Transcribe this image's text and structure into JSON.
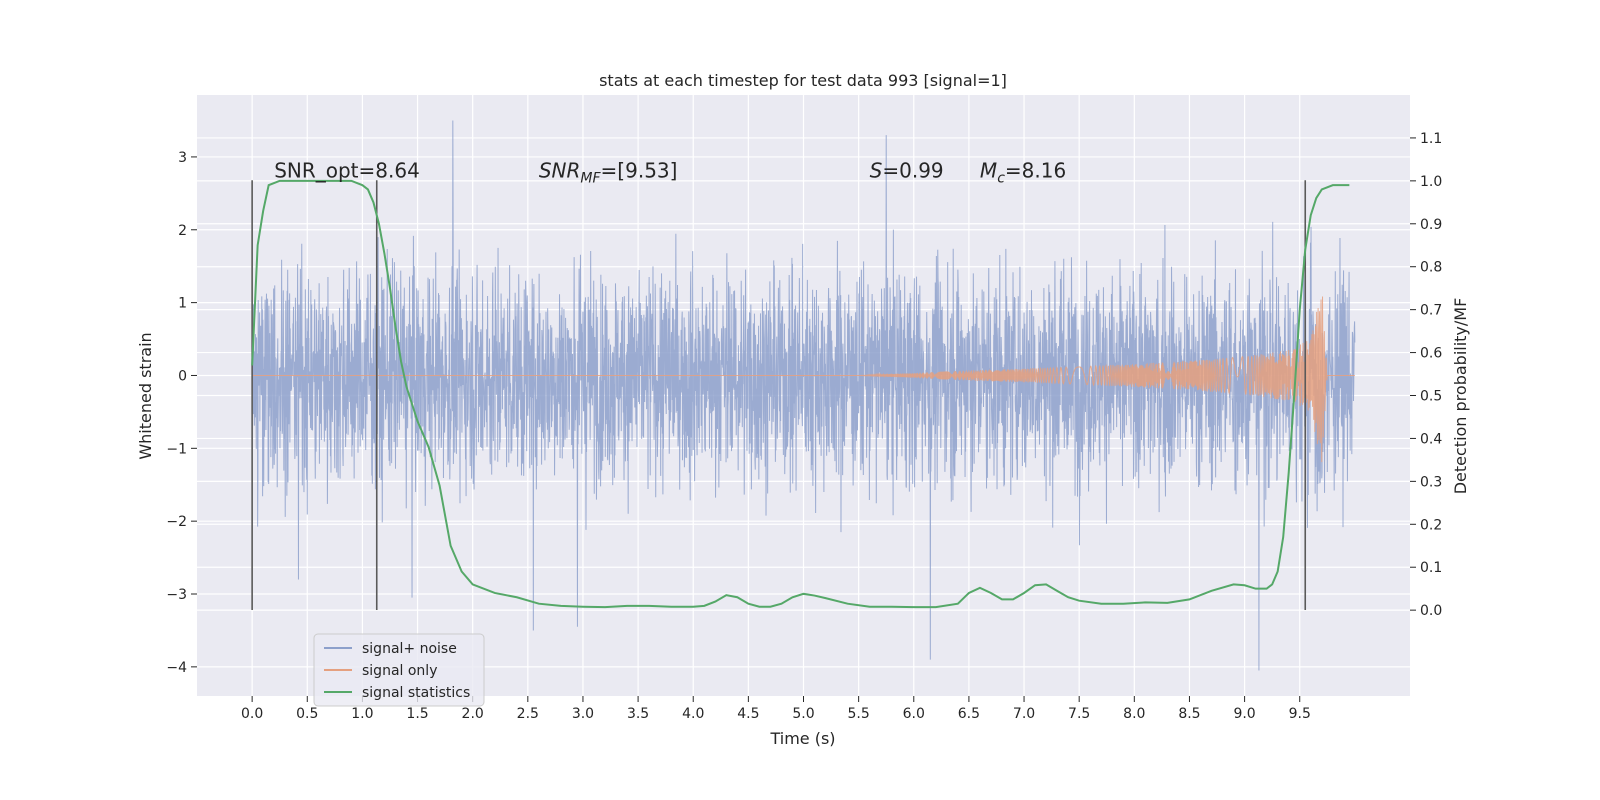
{
  "chart_data": {
    "type": "line",
    "title": "stats at each timestep for test data 993 [signal=1]",
    "xlabel": "Time (s)",
    "ylabel": "Whitened strain",
    "ylabel_right": "Detection probability/MF",
    "xlim": [
      -0.5,
      10.5
    ],
    "ylim": [
      -4.4,
      3.85
    ],
    "ylim_right": [
      -0.2,
      1.2
    ],
    "x_ticks": [
      0.0,
      0.5,
      1.0,
      1.5,
      2.0,
      2.5,
      3.0,
      3.5,
      4.0,
      4.5,
      5.0,
      5.5,
      6.0,
      6.5,
      7.0,
      7.5,
      8.0,
      8.5,
      9.0,
      9.5
    ],
    "x_tick_labels": [
      "0.0",
      "0.5",
      "1.0",
      "1.5",
      "2.0",
      "2.5",
      "3.0",
      "3.5",
      "4.0",
      "4.5",
      "5.0",
      "5.5",
      "6.0",
      "6.5",
      "7.0",
      "7.5",
      "8.0",
      "8.5",
      "9.0",
      "9.5"
    ],
    "y_ticks": [
      -4,
      -3,
      -2,
      -1,
      0,
      1,
      2,
      3
    ],
    "y_tick_labels": [
      "−4",
      "−3",
      "−2",
      "−1",
      "0",
      "1",
      "2",
      "3"
    ],
    "y_ticks_right": [
      0.0,
      0.1,
      0.2,
      0.3,
      0.4,
      0.5,
      0.6,
      0.7,
      0.8,
      0.9,
      1.0,
      1.1
    ],
    "y_tick_labels_right": [
      "0.0",
      "0.1",
      "0.2",
      "0.3",
      "0.4",
      "0.5",
      "0.6",
      "0.7",
      "0.8",
      "0.9",
      "1.0",
      "1.1"
    ],
    "grid": true,
    "legend_placement": "lower-left",
    "annotations": [
      {
        "text": "SNR_opt=8.64",
        "x": 0.2,
        "y": 2.72
      },
      {
        "text": "SNR",
        "sub": "MF",
        "suffix": "=[9.53]",
        "italic": true,
        "x": 2.6,
        "y": 2.72
      },
      {
        "text": "S",
        "sub": "",
        "suffix": "=0.99",
        "italic": true,
        "x": 5.6,
        "y": 2.72
      },
      {
        "text": "M",
        "sub": "c",
        "suffix": "=8.16",
        "italic": true,
        "x": 6.6,
        "y": 2.72
      }
    ],
    "vertical_markers": [
      {
        "x": 0.0,
        "y": [
          -3.22,
          2.68
        ]
      },
      {
        "x": 1.13,
        "y": [
          -3.22,
          2.68
        ]
      },
      {
        "x": 9.55,
        "y": [
          -3.22,
          2.68
        ]
      }
    ],
    "series": [
      {
        "name": "signal+ noise",
        "color": "#8da0cb",
        "axis": "left",
        "x_range": [
          0.0,
          10.0
        ],
        "typical_envelope": [
          -1.5,
          1.5
        ],
        "peak_values": [
          {
            "x": 1.82,
            "y": 3.5
          },
          {
            "x": 5.75,
            "y": 3.3
          },
          {
            "x": 6.15,
            "y": -3.9
          },
          {
            "x": 9.13,
            "y": -4.05
          },
          {
            "x": 2.55,
            "y": -3.5
          },
          {
            "x": 2.95,
            "y": -3.45
          },
          {
            "x": 1.45,
            "y": -3.05
          },
          {
            "x": 0.42,
            "y": -2.8
          }
        ]
      },
      {
        "name": "signal only",
        "color": "#e5a07f",
        "axis": "left",
        "x": [
          0.0,
          5.5,
          6.5,
          7.5,
          8.5,
          9.0,
          9.4,
          9.6,
          9.7,
          9.75,
          10.0
        ],
        "amplitude": [
          0.0,
          0.0,
          0.07,
          0.12,
          0.2,
          0.26,
          0.35,
          0.5,
          1.25,
          0.0,
          0.0
        ]
      },
      {
        "name": "signal statistics",
        "color": "#55a868",
        "axis": "right",
        "x": [
          0.0,
          0.05,
          0.1,
          0.15,
          0.25,
          0.4,
          0.6,
          0.8,
          0.9,
          1.0,
          1.05,
          1.1,
          1.15,
          1.2,
          1.25,
          1.3,
          1.35,
          1.4,
          1.5,
          1.6,
          1.7,
          1.8,
          1.9,
          2.0,
          2.2,
          2.4,
          2.6,
          2.8,
          3.0,
          3.2,
          3.4,
          3.6,
          3.8,
          4.0,
          4.1,
          4.2,
          4.3,
          4.4,
          4.5,
          4.6,
          4.7,
          4.8,
          4.9,
          5.0,
          5.1,
          5.2,
          5.4,
          5.6,
          5.8,
          6.0,
          6.2,
          6.4,
          6.5,
          6.6,
          6.7,
          6.8,
          6.9,
          7.0,
          7.1,
          7.2,
          7.3,
          7.4,
          7.5,
          7.7,
          7.9,
          8.1,
          8.3,
          8.5,
          8.7,
          8.9,
          9.0,
          9.1,
          9.2,
          9.25,
          9.3,
          9.35,
          9.4,
          9.45,
          9.5,
          9.55,
          9.6,
          9.65,
          9.7,
          9.8,
          9.9,
          9.95
        ],
        "y": [
          0.57,
          0.85,
          0.93,
          0.99,
          1.0,
          1.0,
          1.0,
          1.0,
          1.0,
          0.99,
          0.98,
          0.95,
          0.9,
          0.83,
          0.75,
          0.66,
          0.58,
          0.52,
          0.44,
          0.38,
          0.29,
          0.15,
          0.09,
          0.06,
          0.04,
          0.03,
          0.015,
          0.01,
          0.008,
          0.007,
          0.01,
          0.01,
          0.008,
          0.008,
          0.01,
          0.02,
          0.035,
          0.03,
          0.015,
          0.008,
          0.008,
          0.015,
          0.03,
          0.038,
          0.034,
          0.028,
          0.015,
          0.008,
          0.008,
          0.007,
          0.007,
          0.015,
          0.04,
          0.052,
          0.04,
          0.025,
          0.025,
          0.04,
          0.058,
          0.06,
          0.045,
          0.03,
          0.022,
          0.015,
          0.015,
          0.018,
          0.017,
          0.025,
          0.045,
          0.06,
          0.058,
          0.05,
          0.05,
          0.06,
          0.09,
          0.17,
          0.32,
          0.5,
          0.7,
          0.84,
          0.92,
          0.96,
          0.98,
          0.99,
          0.99,
          0.99
        ]
      }
    ]
  }
}
